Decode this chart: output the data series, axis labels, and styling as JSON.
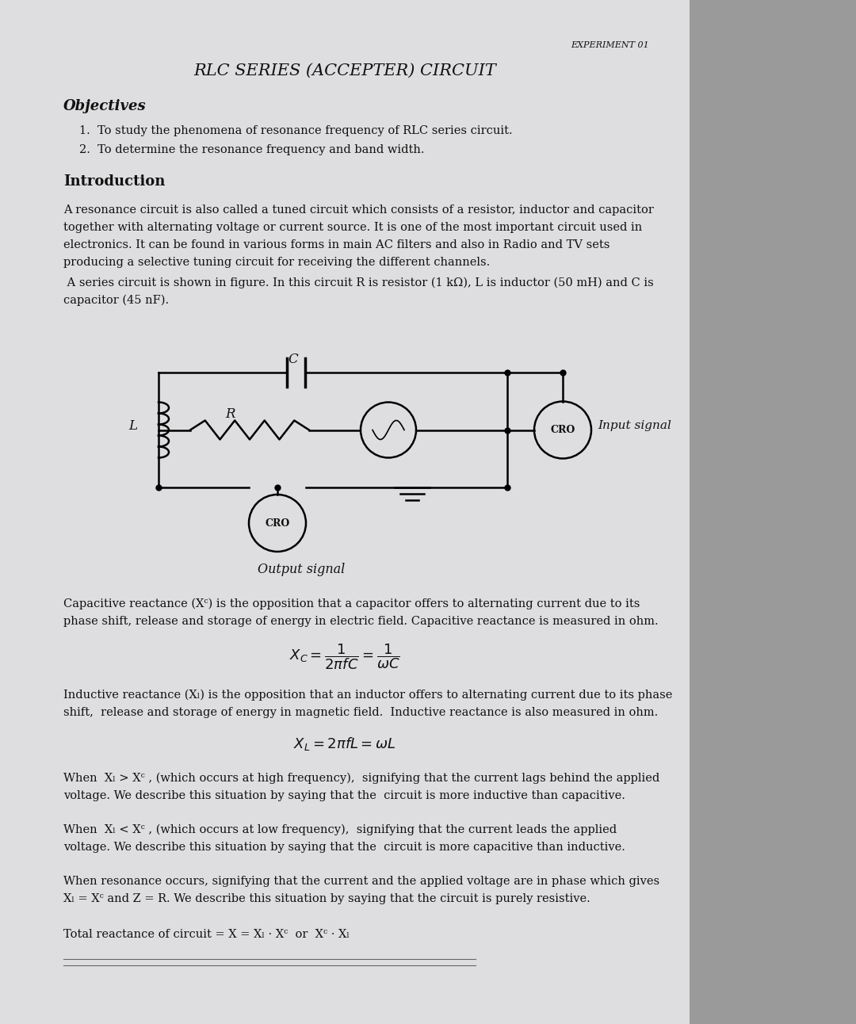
{
  "bg_color": "#b0b0b4",
  "page_color": "#dedee0",
  "page_right_color": "#909090",
  "experiment_label": "EXPERIMENT 01",
  "title": "RLC SERIES (ACCEPTER) CIRCUIT",
  "objectives_header": "Objectives",
  "obj1": "1.  To study the phenomena of resonance frequency of RLC series circuit.",
  "obj2": "2.  To determine the resonance frequency and band width.",
  "intro_header": "Introduction",
  "intro_lines": [
    "A resonance circuit is also called a tuned circuit which consists of a resistor, inductor and capacitor",
    "together with alternating voltage or current source. It is one of the most important circuit used in",
    "electronics. It can be found in various forms in main AC filters and also in Radio and TV sets",
    "producing a selective tuning circuit for receiving the different channels."
  ],
  "series_lines": [
    " A series circuit is shown in figure. In this circuit R is resistor (1 kΩ), L is inductor (50 mH) and C is",
    "capacitor (45 nF)."
  ],
  "cap_lines": [
    "Capacitive reactance (Xᶜ) is the opposition that a capacitor offers to alternating current due to its",
    "phase shift, release and storage of energy in electric field. Capacitive reactance is measured in ohm."
  ],
  "ind_lines": [
    "Inductive reactance (Xₗ) is the opposition that an inductor offers to alternating current due to its phase",
    "shift,  release and storage of energy in magnetic field.  Inductive reactance is also measured in ohm."
  ],
  "w1_lines": [
    "When  Xₗ > Xᶜ , (which occurs at high frequency),  signifying that the current lags behind the applied",
    "voltage. We describe this situation by saying that the  circuit is more inductive than capacitive."
  ],
  "w2_lines": [
    "When  Xₗ < Xᶜ , (which occurs at low frequency),  signifying that the current leads the applied",
    "voltage. We describe this situation by saying that the  circuit is more capacitive than inductive."
  ],
  "w3_lines": [
    "When resonance occurs, signifying that the current and the applied voltage are in phase which gives",
    "Xₗ = Xᶜ and Z = R. We describe this situation by saying that the circuit is purely resistive."
  ],
  "total_line": "Total reactance of circuit = X = Xₗ · Xᶜ  or  Xᶜ · Xₗ",
  "output_signal": "Output signal",
  "input_signal": "Input signal",
  "C_label": "C",
  "L_label": "L",
  "R_label": "R",
  "CRO": "CRO"
}
